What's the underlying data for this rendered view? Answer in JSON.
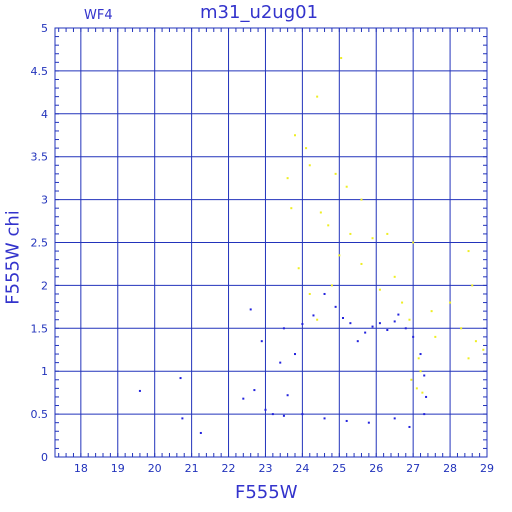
{
  "chart_data": {
    "type": "scatter",
    "title": "m31_u2ug01",
    "panel_label": "WF4",
    "xlabel": "F555W",
    "ylabel": "F555W  chi",
    "xlim": [
      17.3,
      29
    ],
    "ylim": [
      0,
      5
    ],
    "x_ticks": [
      "18",
      "19",
      "20",
      "21",
      "22",
      "23",
      "24",
      "25",
      "26",
      "27",
      "28",
      "29"
    ],
    "y_ticks": [
      "0",
      "0.5",
      "1",
      "1.5",
      "2",
      "2.5",
      "3",
      "3.5",
      "4",
      "4.5",
      "5"
    ],
    "grid": true,
    "series": [
      {
        "color": "#2222dd",
        "points": [
          [
            19.6,
            0.77
          ],
          [
            20.7,
            0.92
          ],
          [
            20.75,
            0.45
          ],
          [
            21.25,
            0.28
          ],
          [
            22.6,
            1.72
          ],
          [
            22.4,
            0.68
          ],
          [
            22.7,
            0.78
          ],
          [
            22.9,
            1.35
          ],
          [
            23.0,
            0.55
          ],
          [
            23.2,
            0.5
          ],
          [
            23.4,
            1.1
          ],
          [
            23.6,
            0.72
          ],
          [
            23.5,
            1.5
          ],
          [
            23.8,
            1.2
          ],
          [
            24.0,
            1.55
          ],
          [
            24.3,
            1.65
          ],
          [
            24.6,
            1.9
          ],
          [
            24.9,
            1.75
          ],
          [
            25.1,
            1.62
          ],
          [
            25.3,
            1.56
          ],
          [
            25.5,
            1.35
          ],
          [
            25.7,
            1.45
          ],
          [
            25.9,
            1.52
          ],
          [
            26.1,
            1.56
          ],
          [
            26.3,
            1.48
          ],
          [
            26.5,
            1.58
          ],
          [
            26.6,
            1.66
          ],
          [
            26.8,
            1.5
          ],
          [
            27.0,
            1.4
          ],
          [
            27.2,
            1.2
          ],
          [
            27.3,
            0.95
          ],
          [
            27.35,
            0.7
          ],
          [
            27.3,
            0.5
          ],
          [
            26.9,
            0.35
          ],
          [
            26.5,
            0.45
          ],
          [
            25.8,
            0.4
          ],
          [
            25.2,
            0.42
          ],
          [
            24.6,
            0.45
          ],
          [
            24.0,
            0.5
          ],
          [
            23.5,
            0.48
          ]
        ]
      },
      {
        "color": "#eeee22",
        "points": [
          [
            25.05,
            4.65
          ],
          [
            24.4,
            4.2
          ],
          [
            23.8,
            3.75
          ],
          [
            24.1,
            3.6
          ],
          [
            23.6,
            3.25
          ],
          [
            24.2,
            3.4
          ],
          [
            24.9,
            3.3
          ],
          [
            25.2,
            3.15
          ],
          [
            25.6,
            3.0
          ],
          [
            24.5,
            2.85
          ],
          [
            23.7,
            2.9
          ],
          [
            24.7,
            2.7
          ],
          [
            25.3,
            2.6
          ],
          [
            25.9,
            2.55
          ],
          [
            26.3,
            2.6
          ],
          [
            27.0,
            2.5
          ],
          [
            28.5,
            2.4
          ],
          [
            28.6,
            2.0
          ],
          [
            28.0,
            1.8
          ],
          [
            27.5,
            1.7
          ],
          [
            26.9,
            1.6
          ],
          [
            28.3,
            1.5
          ],
          [
            28.7,
            1.35
          ],
          [
            28.5,
            1.15
          ],
          [
            28.9,
            1.25
          ],
          [
            27.2,
            1.0
          ],
          [
            27.1,
            0.8
          ],
          [
            26.95,
            0.9
          ],
          [
            27.25,
            0.75
          ],
          [
            27.15,
            1.15
          ],
          [
            26.5,
            2.1
          ],
          [
            25.6,
            2.25
          ],
          [
            24.8,
            2.0
          ],
          [
            24.2,
            1.9
          ],
          [
            23.9,
            2.2
          ],
          [
            25.0,
            2.35
          ],
          [
            26.1,
            1.95
          ],
          [
            26.7,
            1.8
          ],
          [
            24.4,
            1.6
          ],
          [
            27.6,
            1.4
          ]
        ]
      }
    ]
  }
}
